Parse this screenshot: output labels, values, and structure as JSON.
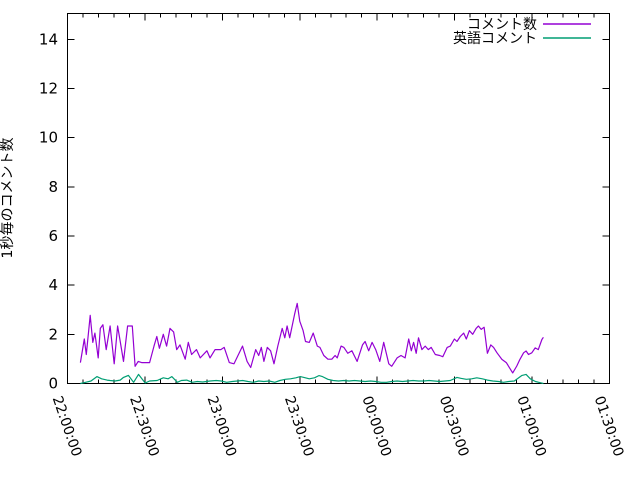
{
  "chart_data": {
    "type": "line",
    "title": "",
    "xlabel": "",
    "ylabel": "1秒毎のコメント数",
    "grid": false,
    "legend_position": "top-right-inside",
    "x_axis": {
      "unit": "time HH:MM:SS",
      "range_minutes": [
        0,
        210
      ],
      "major_tick_minutes": 30,
      "minor_tick_minutes": 6,
      "tick_labels": [
        "22:00:00",
        "22:30:00",
        "23:00:00",
        "23:30:00",
        "00:00:00",
        "00:30:00",
        "01:00:00",
        "01:30:00"
      ]
    },
    "y_axis": {
      "range": [
        0,
        15.05
      ],
      "tick_values": [
        0,
        2,
        4,
        6,
        8,
        10,
        12,
        14
      ]
    },
    "series": [
      {
        "name": "コメント数",
        "color": "#9400D3",
        "points": [
          [
            5,
            0.85
          ],
          [
            6.5,
            1.81
          ],
          [
            7.3,
            1.18
          ],
          [
            8.8,
            2.77
          ],
          [
            9.8,
            1.67
          ],
          [
            10.6,
            2.05
          ],
          [
            11.9,
            1.04
          ],
          [
            12.7,
            2.24
          ],
          [
            13.7,
            2.39
          ],
          [
            15,
            1.38
          ],
          [
            16.5,
            2.34
          ],
          [
            18.1,
            0.8
          ],
          [
            19.4,
            2.34
          ],
          [
            20.1,
            1.91
          ],
          [
            21.7,
            0.9
          ],
          [
            23.3,
            2.34
          ],
          [
            25.1,
            2.34
          ],
          [
            26.2,
            0.7
          ],
          [
            27.4,
            0.9
          ],
          [
            28.7,
            0.85
          ],
          [
            30.2,
            0.85
          ],
          [
            31.8,
            0.85
          ],
          [
            33.5,
            1.52
          ],
          [
            34.6,
            1.91
          ],
          [
            35.6,
            1.43
          ],
          [
            37.1,
            2.0
          ],
          [
            38.4,
            1.52
          ],
          [
            39.7,
            2.24
          ],
          [
            41.1,
            2.1
          ],
          [
            42.3,
            1.38
          ],
          [
            43.6,
            1.57
          ],
          [
            45.6,
            0.99
          ],
          [
            46.8,
            1.67
          ],
          [
            48.1,
            1.18
          ],
          [
            50,
            1.38
          ],
          [
            51.4,
            1.04
          ],
          [
            54,
            1.33
          ],
          [
            55.2,
            1.04
          ],
          [
            57.2,
            1.38
          ],
          [
            59.4,
            1.38
          ],
          [
            60.7,
            1.47
          ],
          [
            62.7,
            0.85
          ],
          [
            64.5,
            0.8
          ],
          [
            67.8,
            1.52
          ],
          [
            69.6,
            0.9
          ],
          [
            71,
            0.65
          ],
          [
            72.9,
            1.38
          ],
          [
            74.1,
            1.14
          ],
          [
            75.1,
            1.47
          ],
          [
            76.1,
            0.9
          ],
          [
            77.4,
            1.47
          ],
          [
            78.7,
            1.33
          ],
          [
            80,
            0.8
          ],
          [
            81.5,
            1.52
          ],
          [
            83.2,
            2.24
          ],
          [
            84.2,
            1.86
          ],
          [
            85.1,
            2.34
          ],
          [
            86.1,
            1.86
          ],
          [
            88,
            2.82
          ],
          [
            89,
            3.26
          ],
          [
            90,
            2.53
          ],
          [
            91.3,
            2.15
          ],
          [
            92.2,
            1.71
          ],
          [
            93.7,
            1.67
          ],
          [
            95.2,
            2.05
          ],
          [
            96.8,
            1.52
          ],
          [
            97.8,
            1.47
          ],
          [
            99.3,
            1.14
          ],
          [
            100.9,
            0.99
          ],
          [
            102.4,
            0.99
          ],
          [
            103.7,
            1.14
          ],
          [
            104.5,
            1.04
          ],
          [
            106,
            1.52
          ],
          [
            107.1,
            1.47
          ],
          [
            108.6,
            1.23
          ],
          [
            110.2,
            1.33
          ],
          [
            112.2,
            0.9
          ],
          [
            114.3,
            1.57
          ],
          [
            115.3,
            1.71
          ],
          [
            116.7,
            1.33
          ],
          [
            118,
            1.67
          ],
          [
            119.4,
            1.38
          ],
          [
            121,
            0.9
          ],
          [
            122.5,
            1.67
          ],
          [
            124.5,
            0.8
          ],
          [
            125.6,
            0.7
          ],
          [
            127.7,
            1.04
          ],
          [
            129.2,
            1.14
          ],
          [
            130.8,
            1.04
          ],
          [
            132.2,
            1.81
          ],
          [
            133.2,
            1.33
          ],
          [
            134.1,
            1.67
          ],
          [
            135.1,
            1.23
          ],
          [
            136,
            1.86
          ],
          [
            137.3,
            1.38
          ],
          [
            138.6,
            1.52
          ],
          [
            139.8,
            1.38
          ],
          [
            140.9,
            1.47
          ],
          [
            142.5,
            1.18
          ],
          [
            144.2,
            1.14
          ],
          [
            145.4,
            1.09
          ],
          [
            147.1,
            1.47
          ],
          [
            148.3,
            1.52
          ],
          [
            149.9,
            1.81
          ],
          [
            150.9,
            1.71
          ],
          [
            152.2,
            1.91
          ],
          [
            153.5,
            2.05
          ],
          [
            154.5,
            1.81
          ],
          [
            155.7,
            2.15
          ],
          [
            157,
            2.0
          ],
          [
            158.3,
            2.24
          ],
          [
            159.2,
            2.34
          ],
          [
            160.3,
            2.2
          ],
          [
            161.4,
            2.29
          ],
          [
            162.7,
            1.23
          ],
          [
            164,
            1.57
          ],
          [
            165.1,
            1.47
          ],
          [
            166.4,
            1.25
          ],
          [
            168.3,
            0.98
          ],
          [
            170,
            0.85
          ],
          [
            172.5,
            0.43
          ],
          [
            174.1,
            0.71
          ],
          [
            175.3,
            0.98
          ],
          [
            176.7,
            1.25
          ],
          [
            177.7,
            1.32
          ],
          [
            178.6,
            1.18
          ],
          [
            179.9,
            1.25
          ],
          [
            181.2,
            1.45
          ],
          [
            182.4,
            1.38
          ],
          [
            183.8,
            1.79
          ],
          [
            184.4,
            1.88
          ]
        ]
      },
      {
        "name": "英語コメント",
        "color": "#009E73",
        "points": [
          [
            5,
            0
          ],
          [
            7,
            0.05
          ],
          [
            9.1,
            0.1
          ],
          [
            11.4,
            0.28
          ],
          [
            13.2,
            0.19
          ],
          [
            15.3,
            0.14
          ],
          [
            16.5,
            0.12
          ],
          [
            18.4,
            0.1
          ],
          [
            20.4,
            0.14
          ],
          [
            21.7,
            0.25
          ],
          [
            23.6,
            0.33
          ],
          [
            25.6,
            0.05
          ],
          [
            27.5,
            0.37
          ],
          [
            30.1,
            0.02
          ],
          [
            31.8,
            0.1
          ],
          [
            34.7,
            0.12
          ],
          [
            37.1,
            0.23
          ],
          [
            39,
            0.19
          ],
          [
            40.4,
            0.28
          ],
          [
            42.6,
            0.05
          ],
          [
            44.1,
            0.12
          ],
          [
            46.2,
            0.14
          ],
          [
            48.3,
            0.05
          ],
          [
            50.3,
            0.08
          ],
          [
            52.4,
            0.06
          ],
          [
            55.2,
            0.1
          ],
          [
            57.6,
            0.12
          ],
          [
            59.6,
            0.1
          ],
          [
            61.7,
            0.05
          ],
          [
            63.8,
            0.08
          ],
          [
            65.8,
            0.1
          ],
          [
            67.9,
            0.12
          ],
          [
            69.9,
            0.08
          ],
          [
            72,
            0.05
          ],
          [
            74.1,
            0.1
          ],
          [
            76.1,
            0.08
          ],
          [
            78.2,
            0.1
          ],
          [
            80.3,
            0.05
          ],
          [
            82.3,
            0.12
          ],
          [
            84.4,
            0.17
          ],
          [
            86.4,
            0.19
          ],
          [
            88.5,
            0.23
          ],
          [
            90.2,
            0.28
          ],
          [
            91.6,
            0.25
          ],
          [
            93.7,
            0.19
          ],
          [
            95.7,
            0.23
          ],
          [
            97.4,
            0.32
          ],
          [
            98.8,
            0.28
          ],
          [
            100.9,
            0.17
          ],
          [
            102.9,
            0.12
          ],
          [
            105,
            0.1
          ],
          [
            107.1,
            0.12
          ],
          [
            109.1,
            0.1
          ],
          [
            111.2,
            0.12
          ],
          [
            113.3,
            0.1
          ],
          [
            115.3,
            0.08
          ],
          [
            117.4,
            0.1
          ],
          [
            119.4,
            0.08
          ],
          [
            121.5,
            0.05
          ],
          [
            123.6,
            0.05
          ],
          [
            125.6,
            0.08
          ],
          [
            127.7,
            0.1
          ],
          [
            129.8,
            0.08
          ],
          [
            131.8,
            0.1
          ],
          [
            133.9,
            0.12
          ],
          [
            136,
            0.1
          ],
          [
            138,
            0.1
          ],
          [
            140.1,
            0.12
          ],
          [
            142.1,
            0.1
          ],
          [
            144.2,
            0.08
          ],
          [
            146.3,
            0.1
          ],
          [
            148.3,
            0.12
          ],
          [
            150.9,
            0.25
          ],
          [
            152.4,
            0.21
          ],
          [
            154.5,
            0.17
          ],
          [
            156.6,
            0.19
          ],
          [
            158.6,
            0.23
          ],
          [
            160.7,
            0.19
          ],
          [
            162.7,
            0.14
          ],
          [
            164.8,
            0.1
          ],
          [
            166.9,
            0.08
          ],
          [
            168.9,
            0.05
          ],
          [
            171,
            0.08
          ],
          [
            173.1,
            0.1
          ],
          [
            176.1,
            0.33
          ],
          [
            177.7,
            0.37
          ],
          [
            179.3,
            0.19
          ],
          [
            181.3,
            0.08
          ],
          [
            183.4,
            0.03
          ],
          [
            184.4,
            0
          ]
        ]
      }
    ]
  },
  "colors": {
    "background": "#ffffff",
    "axis": "#000000",
    "text": "#000000"
  }
}
